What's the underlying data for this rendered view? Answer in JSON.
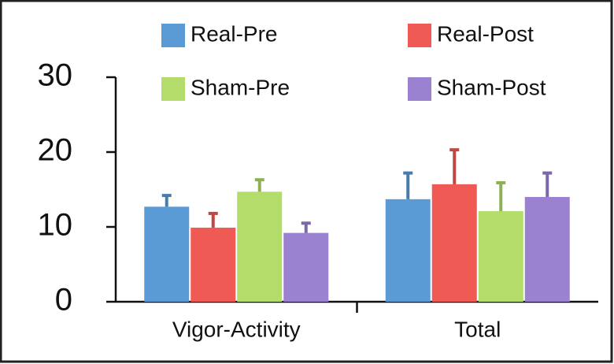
{
  "chart_data": {
    "type": "bar",
    "categories": [
      "Vigor-Activity",
      "Total"
    ],
    "series": [
      {
        "name": "Real-Pre",
        "color": "#5b9bd5",
        "values": [
          12.7,
          13.7
        ],
        "errors": [
          1.5,
          3.5
        ]
      },
      {
        "name": "Real-Post",
        "color": "#ef5a55",
        "values": [
          9.9,
          15.7
        ],
        "errors": [
          1.9,
          4.6
        ]
      },
      {
        "name": "Sham-Pre",
        "color": "#b3dc6a",
        "values": [
          14.7,
          12.1
        ],
        "errors": [
          1.6,
          3.8
        ]
      },
      {
        "name": "Sham-Post",
        "color": "#9a82d0",
        "values": [
          9.2,
          14.0
        ],
        "errors": [
          1.3,
          3.2
        ]
      }
    ],
    "ylim": [
      0,
      30
    ],
    "yticks": [
      0,
      10,
      20,
      30
    ]
  }
}
